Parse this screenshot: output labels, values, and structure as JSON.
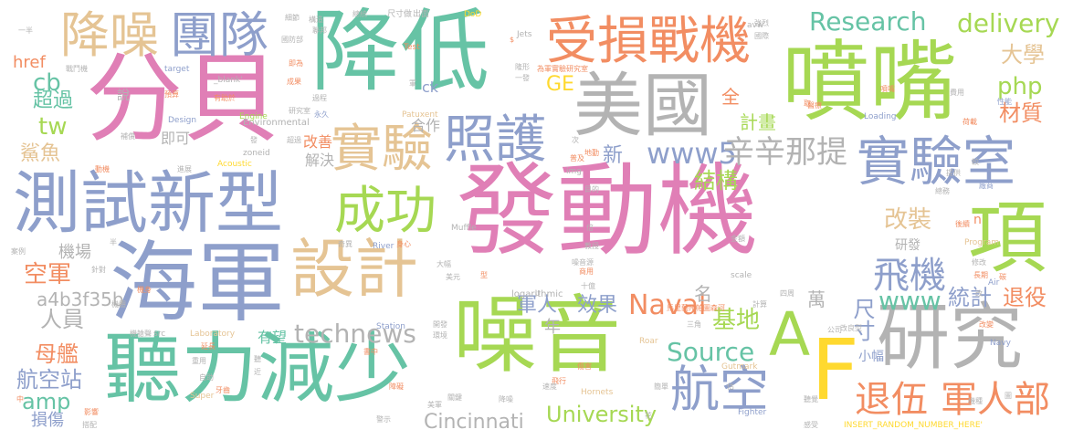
{
  "palette": {
    "pink": "#e07fb6",
    "green": "#66c3a5",
    "orange": "#f28d62",
    "blue": "#8e9fcb",
    "gray": "#b3b3b3",
    "tan": "#e5c494",
    "lime": "#a6d853",
    "yellow": "#ffd92f"
  },
  "words": [
    {
      "text": "發動機",
      "color": "pink"
    },
    {
      "text": "降低",
      "color": "green"
    },
    {
      "text": "分貝",
      "color": "pink"
    },
    {
      "text": "噴嘴",
      "color": "lime"
    },
    {
      "text": "噪音",
      "color": "lime"
    },
    {
      "text": "海軍",
      "color": "blue"
    },
    {
      "text": "聽力減少",
      "color": "green"
    },
    {
      "text": "測試新型",
      "color": "blue"
    },
    {
      "text": "美國",
      "color": "gray"
    },
    {
      "text": "設計",
      "color": "tan"
    },
    {
      "text": "研究",
      "color": "gray"
    },
    {
      "text": "受損戰機",
      "color": "orange"
    },
    {
      "text": "實驗室",
      "color": "blue"
    },
    {
      "text": "降噪",
      "color": "tan"
    },
    {
      "text": "團隊",
      "color": "blue"
    },
    {
      "text": "實驗",
      "color": "tan"
    },
    {
      "text": "照護",
      "color": "blue"
    },
    {
      "text": "成功",
      "color": "lime"
    },
    {
      "text": "航空",
      "color": "blue"
    },
    {
      "text": "A",
      "color": "lime"
    },
    {
      "text": "F",
      "color": "yellow"
    },
    {
      "text": "項",
      "color": "lime"
    },
    {
      "text": "退伍",
      "color": "orange"
    },
    {
      "text": "軍人部",
      "color": "orange"
    },
    {
      "text": "飛機",
      "color": "blue"
    },
    {
      "text": "Research",
      "color": "green"
    },
    {
      "text": "delivery",
      "color": "lime"
    },
    {
      "text": "www5",
      "color": "blue"
    },
    {
      "text": "辛辛那提",
      "color": "gray"
    },
    {
      "text": "technews",
      "color": "gray"
    },
    {
      "text": "Naval",
      "color": "orange"
    },
    {
      "text": "Source",
      "color": "green"
    },
    {
      "text": "University",
      "color": "lime"
    },
    {
      "text": "Cincinnati",
      "color": "gray"
    },
    {
      "text": "www",
      "color": "green"
    },
    {
      "text": "a4b3f35b",
      "color": "gray"
    },
    {
      "text": "基地",
      "color": "lime"
    },
    {
      "text": "結構",
      "color": "lime"
    },
    {
      "text": "改裝",
      "color": "tan"
    },
    {
      "text": "母艦",
      "color": "orange"
    },
    {
      "text": "航空站",
      "color": "blue"
    },
    {
      "text": "人員",
      "color": "gray"
    },
    {
      "text": "空軍",
      "color": "orange"
    },
    {
      "text": "軍人",
      "color": "blue"
    },
    {
      "text": "效果",
      "color": "blue"
    },
    {
      "text": "尺寸",
      "color": "blue"
    },
    {
      "text": "統計",
      "color": "blue"
    },
    {
      "text": "退役",
      "color": "orange"
    },
    {
      "text": "材質",
      "color": "orange"
    },
    {
      "text": "計畫",
      "color": "lime"
    },
    {
      "text": "php",
      "color": "lime"
    },
    {
      "text": "大學",
      "color": "tan"
    },
    {
      "text": "GE",
      "color": "yellow"
    },
    {
      "text": "cb",
      "color": "green"
    },
    {
      "text": "tw",
      "color": "lime"
    },
    {
      "text": "超過",
      "color": "green"
    },
    {
      "text": "href",
      "color": "orange"
    },
    {
      "text": "amp",
      "color": "green"
    },
    {
      "text": "損傷",
      "color": "blue"
    },
    {
      "text": "鯊魚",
      "color": "tan"
    },
    {
      "text": "機場",
      "color": "gray"
    },
    {
      "text": "研發",
      "color": "gray"
    },
    {
      "text": "小幅",
      "color": "blue"
    },
    {
      "text": "有望",
      "color": "green"
    },
    {
      "text": "新",
      "color": "blue"
    },
    {
      "text": "全",
      "color": "orange"
    },
    {
      "text": "名",
      "color": "gray"
    },
    {
      "text": "萬",
      "color": "gray"
    },
    {
      "text": "年",
      "color": "gray"
    },
    {
      "text": "ck",
      "color": "blue"
    },
    {
      "text": "即可",
      "color": "gray"
    },
    {
      "text": "解決",
      "color": "gray"
    },
    {
      "text": "改善",
      "color": "orange"
    },
    {
      "text": "合作",
      "color": "gray"
    },
    {
      "text": "說",
      "color": "gray"
    },
    {
      "text": "logarithmic",
      "color": "gray"
    },
    {
      "text": "INSERT_RANDOM_NUMBER_HERE'",
      "color": "yellow"
    },
    {
      "text": "Environmental",
      "color": "gray"
    },
    {
      "text": "Design",
      "color": "blue"
    },
    {
      "text": "Engine",
      "color": "lime"
    },
    {
      "text": "Acoustic",
      "color": "yellow"
    },
    {
      "text": "Patuxent",
      "color": "tan"
    },
    {
      "text": "Laboratory",
      "color": "tan"
    },
    {
      "text": "Station",
      "color": "blue"
    },
    {
      "text": "River",
      "color": "blue"
    },
    {
      "text": "Muffle",
      "color": "gray"
    },
    {
      "text": "Program",
      "color": "tan"
    },
    {
      "text": "Gutmark",
      "color": "tan"
    },
    {
      "text": "Hornets",
      "color": "tan"
    },
    {
      "text": "Fighter",
      "color": "blue"
    },
    {
      "text": "Roar",
      "color": "tan"
    },
    {
      "text": "Super",
      "color": "tan"
    },
    {
      "text": "scale",
      "color": "gray"
    },
    {
      "text": "Loading",
      "color": "blue"
    },
    {
      "text": "Navy",
      "color": "blue"
    },
    {
      "text": "Air",
      "color": "blue"
    },
    {
      "text": "Jets",
      "color": "gray"
    },
    {
      "text": "DoD",
      "color": "yellow"
    },
    {
      "text": "Test",
      "color": "orange"
    },
    {
      "text": "target",
      "color": "blue"
    },
    {
      "text": "_blank'",
      "color": "gray"
    },
    {
      "text": "zoneid",
      "color": "gray"
    },
    {
      "text": "img",
      "color": "gray"
    },
    {
      "text": "src",
      "color": "gray"
    },
    {
      "text": "avw",
      "color": "gray"
    },
    {
      "text": "n",
      "color": "orange"
    },
    {
      "text": "尺寸做",
      "color": "gray"
    },
    {
      "text": "出面",
      "color": "gray"
    },
    {
      "text": "為軍實驗研究室",
      "color": "orange"
    },
    {
      "text": "馬里蘭州帕圖森河",
      "color": "orange"
    },
    {
      "text": "研究室",
      "color": "gray"
    },
    {
      "text": "一半",
      "color": "gray"
    },
    {
      "text": "國防部",
      "color": "gray"
    },
    {
      "text": "戰鬥機",
      "color": "gray"
    },
    {
      "text": "有助於",
      "color": "orange"
    },
    {
      "text": "預算",
      "color": "orange"
    },
    {
      "text": "成果",
      "color": "orange"
    },
    {
      "text": "永久",
      "color": "blue"
    },
    {
      "text": "地勤",
      "color": "orange"
    },
    {
      "text": "噴嘴",
      "color": "orange"
    },
    {
      "text": "機艙聲",
      "color": "gray"
    },
    {
      "text": "奇異",
      "color": "gray"
    },
    {
      "text": "身心",
      "color": "orange"
    },
    {
      "text": "教授",
      "color": "gray"
    },
    {
      "text": "噪音源",
      "color": "gray"
    },
    {
      "text": "改良型",
      "color": "gray"
    },
    {
      "text": "延長",
      "color": "orange"
    },
    {
      "text": "傷害",
      "color": "orange"
    },
    {
      "text": "十億",
      "color": "gray"
    },
    {
      "text": "美元",
      "color": "gray"
    },
    {
      "text": "大幅",
      "color": "gray"
    },
    {
      "text": "碳",
      "color": "orange"
    },
    {
      "text": "計算",
      "color": "gray"
    },
    {
      "text": "改變",
      "color": "orange"
    },
    {
      "text": "商用",
      "color": "orange"
    },
    {
      "text": "長期",
      "color": "orange"
    },
    {
      "text": "後續",
      "color": "orange"
    },
    {
      "text": "提供",
      "color": "gray"
    },
    {
      "text": "廠商",
      "color": "blue"
    },
    {
      "text": "四周",
      "color": "gray"
    },
    {
      "text": "公司",
      "color": "gray"
    },
    {
      "text": "聽覺",
      "color": "gray"
    },
    {
      "text": "感受",
      "color": "gray"
    },
    {
      "text": "機種",
      "color": "gray"
    },
    {
      "text": "一發",
      "color": "gray"
    },
    {
      "text": "影響",
      "color": "orange"
    },
    {
      "text": "搭配",
      "color": "gray"
    },
    {
      "text": "環境",
      "color": "gray"
    },
    {
      "text": "開發",
      "color": "gray"
    },
    {
      "text": "飛行",
      "color": "orange"
    },
    {
      "text": "簡單",
      "color": "gray"
    },
    {
      "text": "速度",
      "color": "gray"
    },
    {
      "text": "降噪",
      "color": "gray"
    },
    {
      "text": "美軍",
      "color": "gray"
    },
    {
      "text": "障礙",
      "color": "orange"
    },
    {
      "text": "警示",
      "color": "gray"
    },
    {
      "text": "重用",
      "color": "gray"
    },
    {
      "text": "書中",
      "color": "orange"
    },
    {
      "text": "三角",
      "color": "gray"
    },
    {
      "text": "機身",
      "color": "orange"
    },
    {
      "text": "半",
      "color": "gray"
    },
    {
      "text": "針對",
      "color": "gray"
    },
    {
      "text": "案例",
      "color": "gray"
    },
    {
      "text": "補償",
      "color": "gray"
    },
    {
      "text": "動機",
      "color": "orange"
    },
    {
      "text": "進展",
      "color": "gray"
    },
    {
      "text": "發",
      "color": "gray"
    },
    {
      "text": "次",
      "color": "gray"
    },
    {
      "text": "普及",
      "color": "orange"
    },
    {
      "text": "性能",
      "color": "blue"
    },
    {
      "text": "荷載",
      "color": "orange"
    },
    {
      "text": "費用",
      "color": "gray"
    },
    {
      "text": "國際",
      "color": "gray"
    },
    {
      "text": "強烈",
      "color": "gray"
    },
    {
      "text": "醫療",
      "color": "orange"
    },
    {
      "text": "總務",
      "color": "gray"
    },
    {
      "text": "金額",
      "color": "gray"
    },
    {
      "text": "超過",
      "color": "gray"
    },
    {
      "text": "牙齒",
      "color": "orange"
    },
    {
      "text": "聽",
      "color": "gray"
    },
    {
      "text": "近",
      "color": "gray"
    },
    {
      "text": "圖",
      "color": "gray"
    },
    {
      "text": "中",
      "color": "orange"
    },
    {
      "text": "目的",
      "color": "gray"
    },
    {
      "text": "倍",
      "color": "gray"
    },
    {
      "text": "花",
      "color": "gray"
    },
    {
      "text": "估",
      "color": "gray"
    },
    {
      "text": "取",
      "color": "orange"
    },
    {
      "text": "較",
      "color": "gray"
    },
    {
      "text": "型",
      "color": "orange"
    },
    {
      "text": "軍",
      "color": "gray"
    },
    {
      "text": "隆形",
      "color": "gray"
    },
    {
      "text": "構造",
      "color": "gray"
    },
    {
      "text": "過程",
      "color": "gray"
    },
    {
      "text": "關鍵",
      "color": "gray"
    },
    {
      "text": "總統",
      "color": "gray"
    },
    {
      "text": "細節",
      "color": "gray"
    },
    {
      "text": "聯邦",
      "color": "gray"
    },
    {
      "text": "自助",
      "color": "gray"
    },
    {
      "text": "機體",
      "color": "gray"
    },
    {
      "text": "改",
      "color": "gray"
    },
    {
      "text": "修改",
      "color": "gray"
    },
    {
      "text": "U",
      "color": "gray"
    },
    {
      "text": "$",
      "color": "orange"
    },
    {
      "text": "即為",
      "color": "orange"
    }
  ]
}
